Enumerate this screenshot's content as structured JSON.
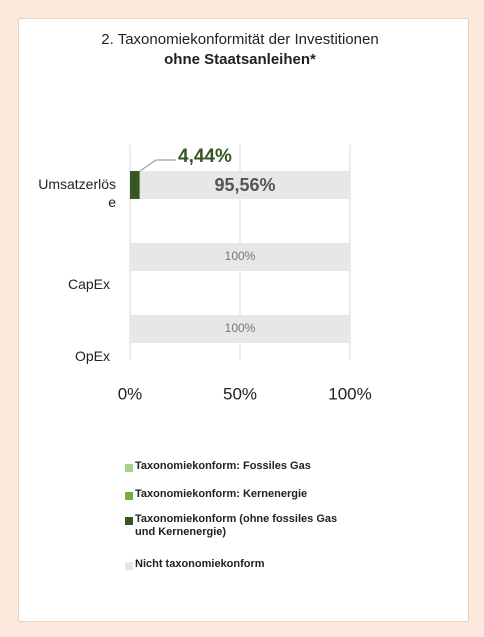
{
  "chart_data": {
    "type": "stacked_bar_horizontal",
    "title": "2. Taxonomiekonformität der Investitionen",
    "subtitle": "ohne Staatsanleihen*",
    "categories": [
      "Umsatzerlöse",
      "CapEx",
      "OpEx"
    ],
    "series": [
      {
        "name": "Taxonomiekonform: Fossiles Gas",
        "color": "#a9d18e",
        "values": [
          0,
          0,
          0
        ]
      },
      {
        "name": "Taxonomiekonform: Kernenergie",
        "color": "#70ad47",
        "values": [
          0,
          0,
          0
        ]
      },
      {
        "name": "Taxonomiekonform (ohne fossiles Gas und Kernenergie)",
        "color": "#375623",
        "values": [
          4.44,
          0,
          0
        ],
        "value_labels": [
          "4,44%",
          null,
          null
        ]
      },
      {
        "name": "Nicht taxonomiekonform",
        "color": "#e7e7e7",
        "values": [
          95.56,
          100,
          100
        ],
        "value_labels": [
          "95,56%",
          "100%",
          "100%"
        ]
      }
    ],
    "xlim": [
      0,
      100
    ],
    "xticks": [
      {
        "value": 0,
        "label": "0%"
      },
      {
        "value": 50,
        "label": "50%"
      },
      {
        "value": 100,
        "label": "100%"
      }
    ],
    "grid": true
  }
}
